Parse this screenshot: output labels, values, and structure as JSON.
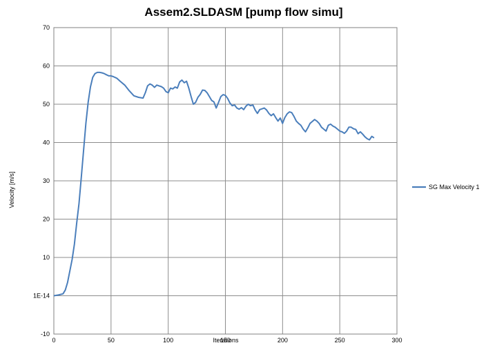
{
  "chart_data": {
    "type": "line",
    "title": "Assem2.SLDASM [pump flow simu]",
    "xlabel": "Iterations",
    "ylabel": "Velocity  [m/s]",
    "xlim": [
      0,
      300
    ],
    "ylim": [
      -10,
      70
    ],
    "x_ticks": [
      0,
      50,
      100,
      150,
      200,
      250,
      300
    ],
    "x_tick_labels": [
      "0",
      "50",
      "100",
      "150",
      "200",
      "250",
      "300"
    ],
    "y_ticks": [
      -10,
      0,
      10,
      20,
      30,
      40,
      50,
      60,
      70
    ],
    "y_tick_labels": [
      "-10",
      "1E-14",
      "10",
      "20",
      "30",
      "40",
      "50",
      "60",
      "70"
    ],
    "grid": true,
    "legend_position": "right",
    "series": [
      {
        "name": "SG Max Velocity  1",
        "color": "#4a7ebb",
        "x": [
          0,
          4,
          8,
          10,
          12,
          14,
          16,
          18,
          20,
          22,
          24,
          26,
          28,
          30,
          32,
          34,
          36,
          38,
          40,
          42,
          44,
          46,
          48,
          50,
          52,
          55,
          58,
          62,
          66,
          70,
          74,
          78,
          80,
          82,
          84,
          86,
          88,
          90,
          92,
          94,
          96,
          98,
          100,
          102,
          104,
          106,
          108,
          110,
          112,
          114,
          116,
          118,
          120,
          122,
          124,
          126,
          128,
          130,
          132,
          134,
          136,
          138,
          140,
          142,
          144,
          146,
          148,
          150,
          152,
          154,
          156,
          158,
          160,
          162,
          164,
          166,
          168,
          170,
          172,
          174,
          176,
          178,
          180,
          182,
          184,
          186,
          188,
          190,
          192,
          194,
          196,
          198,
          200,
          202,
          204,
          206,
          208,
          210,
          212,
          214,
          216,
          218,
          220,
          222,
          224,
          226,
          228,
          230,
          232,
          234,
          236,
          238,
          240,
          242,
          244,
          246,
          248,
          250,
          252,
          254,
          256,
          258,
          260,
          262,
          264,
          266,
          268,
          270,
          272,
          274,
          276,
          278,
          280
        ],
        "y": [
          0,
          0.2,
          0.5,
          1.5,
          3.5,
          6.5,
          9.5,
          13.5,
          19,
          24,
          31,
          38,
          45,
          50.5,
          54.5,
          57,
          58,
          58.3,
          58.3,
          58.2,
          58.0,
          57.7,
          57.4,
          57.4,
          57.2,
          56.8,
          56.0,
          55.0,
          53.5,
          52.2,
          51.8,
          51.6,
          53.0,
          54.8,
          55.3,
          55.0,
          54.4,
          55.0,
          54.8,
          54.6,
          54.2,
          53.3,
          53.0,
          54.2,
          54.0,
          54.5,
          54.2,
          55.8,
          56.3,
          55.6,
          56.0,
          54.2,
          52.0,
          50.0,
          50.5,
          51.8,
          52.6,
          53.7,
          53.6,
          53.0,
          52.0,
          51.0,
          50.6,
          49.0,
          50.5,
          52.0,
          52.5,
          52.3,
          51.5,
          50.3,
          49.6,
          49.8,
          49.0,
          48.7,
          49.1,
          48.6,
          49.5,
          50.0,
          49.6,
          49.8,
          48.5,
          47.6,
          48.6,
          48.8,
          49.0,
          48.5,
          47.6,
          47.0,
          47.5,
          46.5,
          45.6,
          46.4,
          45.0,
          46.5,
          47.5,
          48.0,
          47.8,
          46.8,
          45.6,
          45.0,
          44.5,
          43.5,
          42.8,
          43.8,
          45.0,
          45.5,
          46.0,
          45.6,
          45.0,
          44.0,
          43.5,
          43.0,
          44.5,
          44.8,
          44.3,
          44.0,
          43.5,
          43.0,
          42.8,
          42.4,
          43.0,
          44.0,
          44.0,
          43.6,
          43.4,
          42.3,
          42.8,
          42.2,
          41.5,
          41.0,
          40.7,
          41.6,
          41.2
        ]
      }
    ]
  }
}
